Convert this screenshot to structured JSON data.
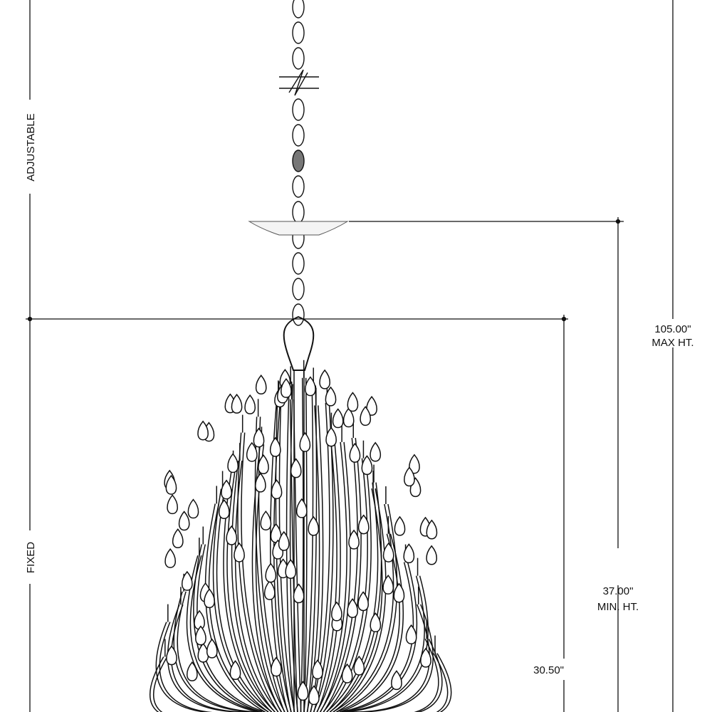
{
  "labels": {
    "adjustable": "ADJUSTABLE",
    "fixed": "FIXED",
    "max_value": "105.00\"",
    "max_label": "MAX HT.",
    "min_value": "37.00\"",
    "min_label": "MIN. HT.",
    "fixed_value": "30.50\""
  },
  "colors": {
    "line": "#111111",
    "background": "#ffffff"
  }
}
